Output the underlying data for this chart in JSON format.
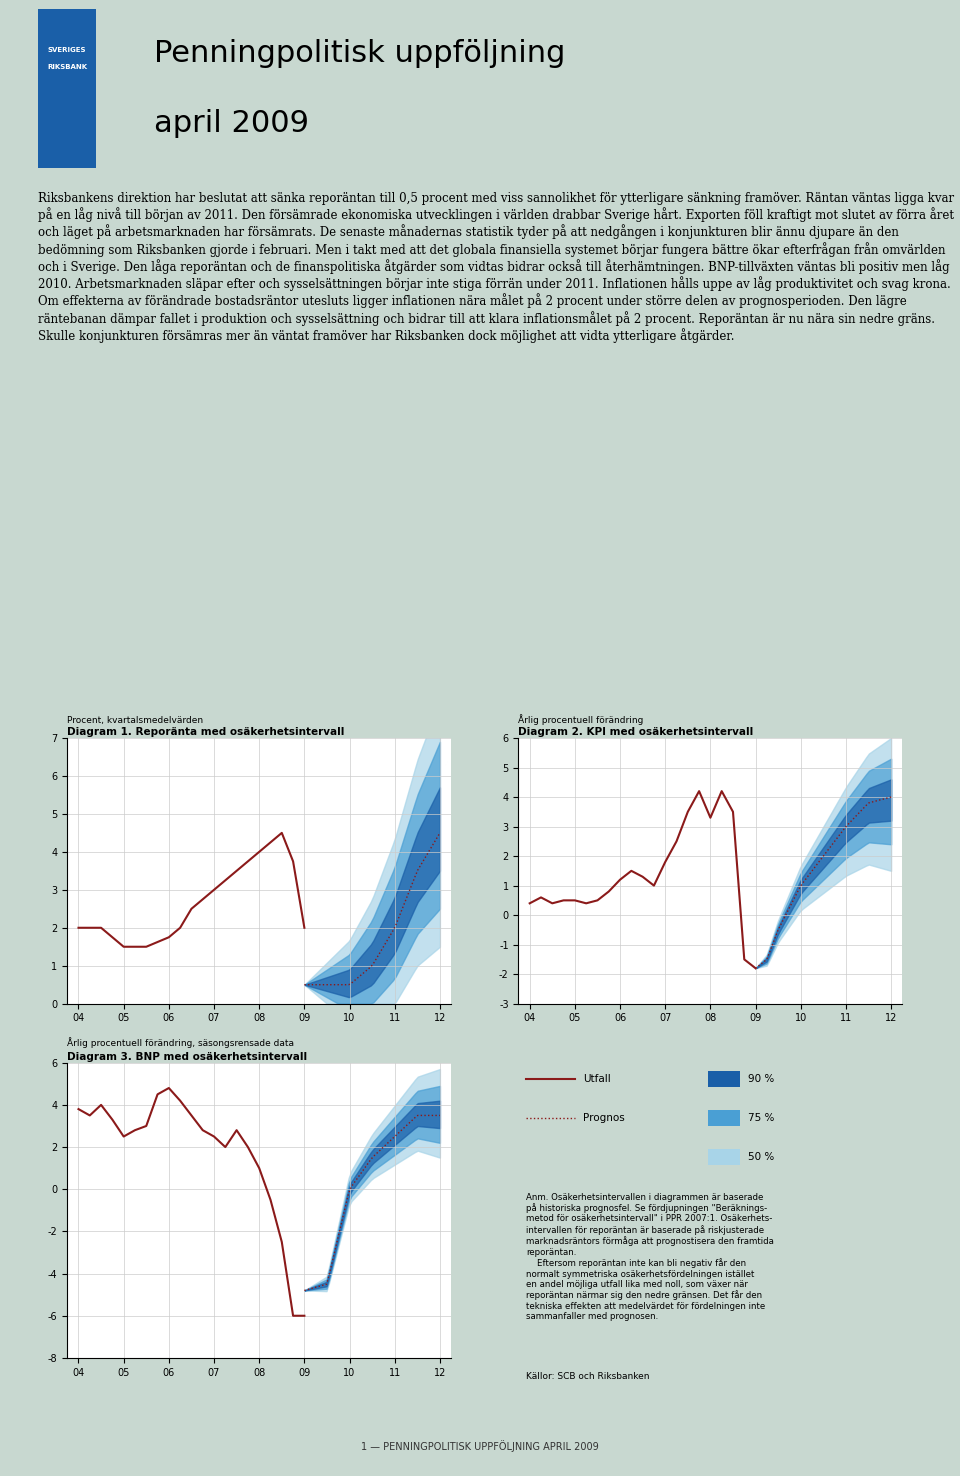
{
  "bg_color": "#c8d8d0",
  "header_bg": "#c8d8d0",
  "header_bar_color": "#1a5fa8",
  "header_title_line1": "Penningpolitisk uppföljning",
  "header_title_line2": "april 2009",
  "body_text": "Riksbankens direktion har beslutat att sänka reporäntan till 0,5 procent med viss sannolikhet för ytterligare sänkning framöver. Räntan väntas ligga kvar på en låg nivå till början av 2011. Den försämrade ekonomiska utvecklingen i världen drabbar Sverige hårt. Exporten föll kraftigt mot slutet av förra året och läget på arbetsmarknaden har försämrats. De senaste månadernas statistik tyder på att nedgången i konjunkturen blir ännu djupare än den bedömning som Riksbanken gjorde i februari. Men i takt med att det globala finansiella systemet börjar fungera bättre ökar efterfrågan från omvärlden och i Sverige. Den låga reporäntan och de finanspolitiska åtgärder som vidtas bidrar också till återhämtningen. BNP-tillväxten väntas bli positiv men låg 2010. Arbetsmarknaden släpar efter och sysselsättningen börjar inte stiga förrän under 2011. Inflationen hålls uppe av låg produktivitet och svag krona. Om effekterna av förändrade bostadsräntor utesluts ligger inflationen nära målet på 2 procent under större delen av prognosperioden. Den lägre räntebanan dämpar fallet i produktion och sysselsättning och bidrar till att klara inflationsmålet på 2 procent. Reporäntan är nu nära sin nedre gräns. Skulle konjunkturen försämras mer än väntat framöver har Riksbanken dock möjlighet att vidta ytterligare åtgärder.",
  "chart_bg": "#ffffff",
  "diag1_title": "Diagram 1. Reporänta med osäkerhetsintervall",
  "diag1_subtitle": "Procent, kvartalsmedelvärden",
  "diag2_title": "Diagram 2. KPI med osäkerhetsintervall",
  "diag2_subtitle": "Årlig procentuell förändring",
  "diag3_title": "Diagram 3. BNP med osäkerhetsintervall",
  "diag3_subtitle": "Årlig procentuell förändring, säsongsrensade data",
  "footer_text": "1 — PENNINGPOLITISK UPPFÖLJNING APRIL 2009",
  "footer_bg": "#c8d8d0",
  "color_actual": "#8b1a1a",
  "color_prognos": "#8b1a1a",
  "color_90": "#1a5fa8",
  "color_75": "#4a9fd4",
  "color_50": "#a8d4e8",
  "note_text": "Anm. Osäkerhetsintervallen i diagrammen är baserade\npå historiska prognosfel. Se fördjupningen \"Beräknings-\nmetod för osäkerhetsintervall\" i PPR 2007:1. Osäkerhets-\nintervallen för reporäntan är baserade på riskjusterade\nmarknadsräntors förmåga att prognostisera den framtida\nreporäntan.\n    Eftersom reporäntan inte kan bli negativ får den\nnormalt symmetriska osäkerhetsfördelningen istället\nen andel möjliga utfall lika med noll, som växer när\nreporäntan närmar sig den nedre gränsen. Det får den\ntekniska effekten att medelvärdet för fördelningen inte\nsammanfaller med prognosen.",
  "sources_text": "Källor: SCB och Riksbanken"
}
